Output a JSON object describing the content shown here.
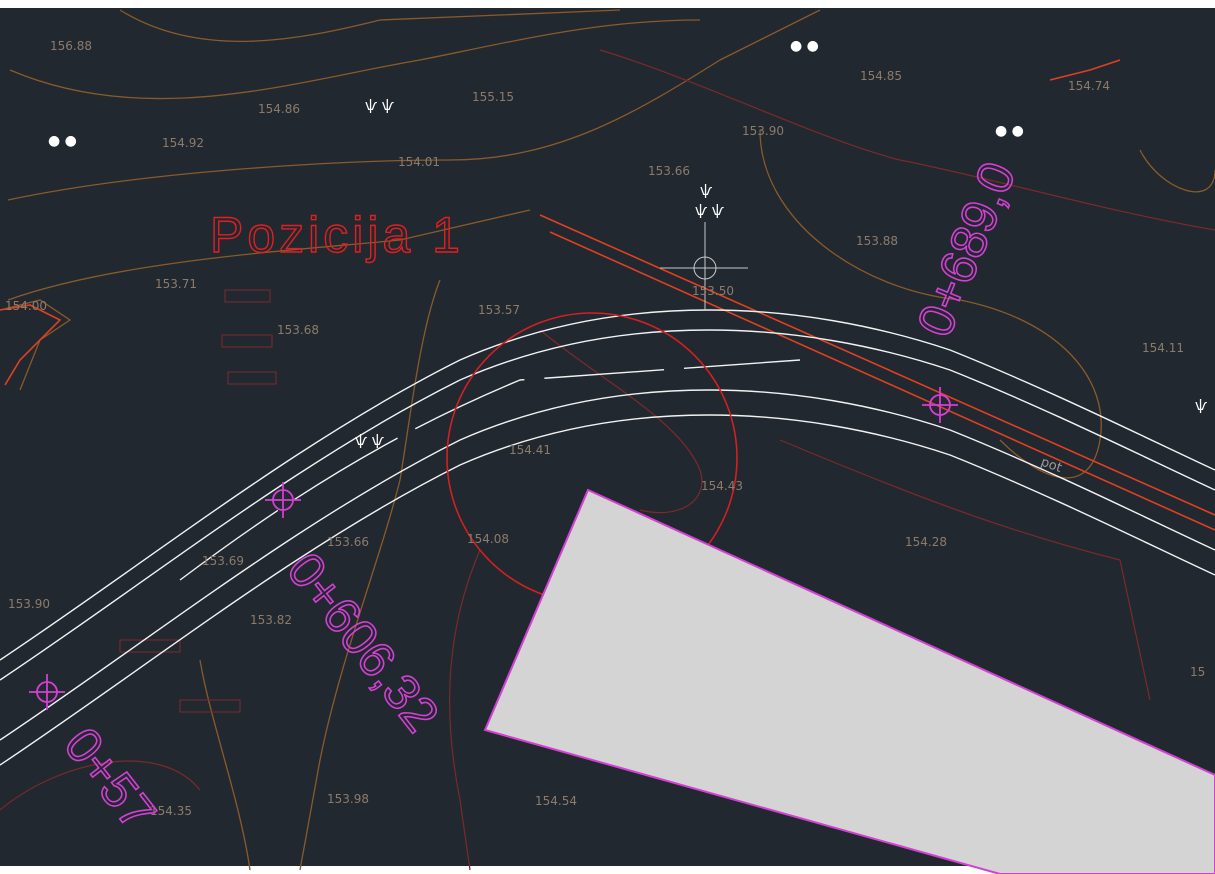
{
  "elevations": [
    "156.88",
    "154.86",
    "155.15",
    "154.85",
    "154.74",
    "154.92",
    "154.01",
    "153.90",
    "153.66",
    "153.88",
    "153.71",
    "154.00",
    "153.57",
    "153.50",
    "153.68",
    "154.11",
    "154.41",
    "154.43",
    "154.08",
    "154.28",
    "153.69",
    "153.66",
    "153.90",
    "153.82",
    "154.35",
    "153.98",
    "154.54",
    "15"
  ],
  "position_label": "Pozicija 1",
  "stations": [
    "0+606,32",
    "0+689,0",
    "0+57"
  ],
  "road_label": "pot"
}
